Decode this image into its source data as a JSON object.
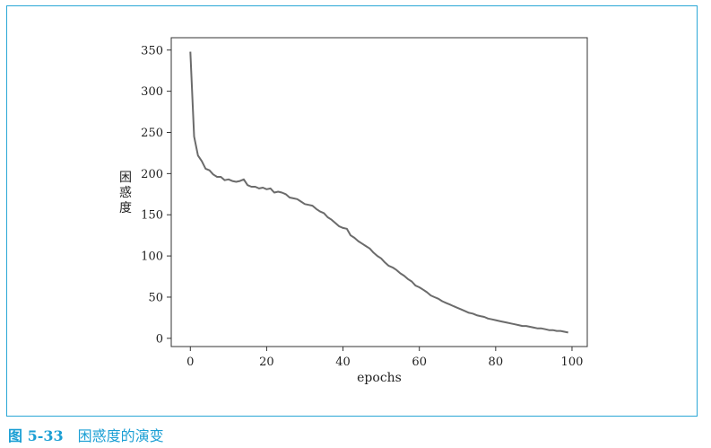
{
  "chart_data": {
    "type": "line",
    "xlabel": "epochs",
    "ylabel": "困惑度",
    "xlim": [
      -5,
      104
    ],
    "ylim": [
      -10,
      365
    ],
    "xticks": [
      0,
      20,
      40,
      60,
      80,
      100
    ],
    "yticks": [
      0,
      50,
      100,
      150,
      200,
      250,
      300,
      350
    ],
    "grid": false,
    "series": [
      {
        "name": "perplexity",
        "color": "#6b6b6b",
        "x": [
          0,
          1,
          2,
          3,
          4,
          5,
          6,
          7,
          8,
          9,
          10,
          11,
          12,
          13,
          14,
          15,
          16,
          17,
          18,
          19,
          20,
          21,
          22,
          23,
          24,
          25,
          26,
          27,
          28,
          29,
          30,
          31,
          32,
          33,
          34,
          35,
          36,
          37,
          38,
          39,
          40,
          41,
          42,
          43,
          44,
          45,
          46,
          47,
          48,
          49,
          50,
          51,
          52,
          53,
          54,
          55,
          56,
          57,
          58,
          59,
          60,
          61,
          62,
          63,
          64,
          65,
          66,
          67,
          68,
          69,
          70,
          71,
          72,
          73,
          74,
          75,
          76,
          77,
          78,
          79,
          80,
          81,
          82,
          83,
          84,
          85,
          86,
          87,
          88,
          89,
          90,
          91,
          92,
          93,
          94,
          95,
          96,
          97,
          98,
          99
        ],
        "values": [
          348,
          245,
          222,
          215,
          206,
          204,
          199,
          196,
          196,
          192,
          193,
          191,
          190,
          191,
          193,
          186,
          184,
          184,
          182,
          183,
          181,
          182,
          177,
          178,
          177,
          175,
          171,
          170,
          169,
          166,
          163,
          162,
          161,
          157,
          154,
          152,
          147,
          144,
          140,
          136,
          134,
          133,
          125,
          122,
          118,
          115,
          112,
          109,
          104,
          100,
          97,
          92,
          88,
          86,
          83,
          79,
          76,
          72,
          69,
          64,
          62,
          59,
          56,
          52,
          50,
          48,
          45,
          43,
          41,
          39,
          37,
          35,
          33,
          31,
          30,
          28,
          27,
          26,
          24,
          23,
          22,
          21,
          20,
          19,
          18,
          17,
          16,
          15,
          15,
          14,
          13,
          12,
          12,
          11,
          10,
          10,
          9,
          9,
          8,
          7
        ]
      }
    ]
  },
  "caption": {
    "figure_number": "图 5-33",
    "title": "困惑度的演变"
  },
  "colors": {
    "frame_border": "#2aa7d6",
    "caption": "#1b9fd4",
    "line": "#6b6b6b"
  }
}
